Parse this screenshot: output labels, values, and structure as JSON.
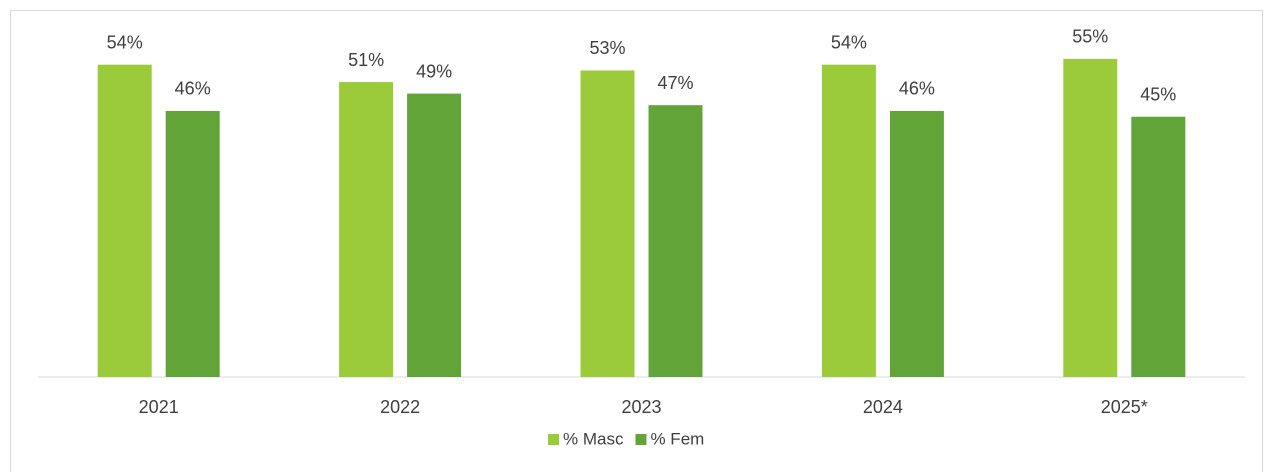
{
  "chart_data": {
    "type": "bar",
    "categories": [
      "2021",
      "2022",
      "2023",
      "2024",
      "2025*"
    ],
    "series": [
      {
        "name": "% Masc",
        "color": "#9bcb3b",
        "values": [
          54,
          51,
          53,
          54,
          55
        ],
        "value_labels": [
          "54%",
          "51%",
          "53%",
          "54%",
          "55%"
        ]
      },
      {
        "name": "% Fem",
        "color": "#62a438",
        "values": [
          46,
          49,
          47,
          46,
          45
        ],
        "value_labels": [
          "46%",
          "49%",
          "47%",
          "46%",
          "45%"
        ]
      }
    ],
    "ylim": [
      0,
      60
    ],
    "grid": false,
    "legend": "bottom"
  }
}
